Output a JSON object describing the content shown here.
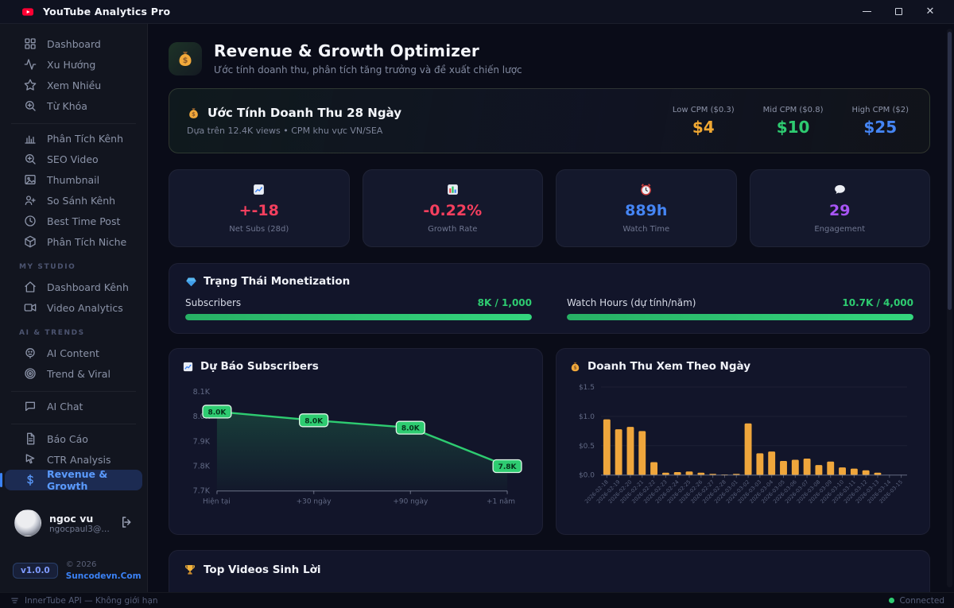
{
  "window": {
    "title": "YouTube Analytics Pro"
  },
  "titlebar": {
    "controls": [
      "minimize",
      "maximize",
      "close"
    ]
  },
  "sidebar": {
    "groups": [
      {
        "header": null,
        "items": [
          {
            "id": "dashboard",
            "icon": "grid",
            "label": "Dashboard",
            "active": false
          },
          {
            "id": "xu-huong",
            "icon": "activity",
            "label": "Xu Hướng",
            "active": false
          },
          {
            "id": "xem-nhieu",
            "icon": "star",
            "label": "Xem Nhiều",
            "active": false
          },
          {
            "id": "tu-khoa",
            "icon": "zoom",
            "label": "Từ Khóa",
            "active": false
          }
        ]
      },
      {
        "header": null,
        "items": [
          {
            "id": "phan-tich-kenh",
            "icon": "bars",
            "label": "Phân Tích Kênh",
            "active": false
          },
          {
            "id": "seo-video",
            "icon": "zoom",
            "label": "SEO Video",
            "active": false
          },
          {
            "id": "thumbnail",
            "icon": "image",
            "label": "Thumbnail",
            "active": false
          },
          {
            "id": "so-sanh-kenh",
            "icon": "user-plus",
            "label": "So Sánh Kênh",
            "active": false
          },
          {
            "id": "best-time-post",
            "icon": "clock",
            "label": "Best Time Post",
            "active": false
          },
          {
            "id": "phan-tich-niche",
            "icon": "cube",
            "label": "Phân Tích Niche",
            "active": false
          }
        ]
      },
      {
        "header": "MY STUDIO",
        "items": [
          {
            "id": "dashboard-kenh",
            "icon": "home",
            "label": "Dashboard Kênh",
            "active": false
          },
          {
            "id": "video-analytics",
            "icon": "video",
            "label": "Video Analytics",
            "active": false
          }
        ]
      },
      {
        "header": "AI & TRENDS",
        "items": [
          {
            "id": "ai-content",
            "icon": "robot",
            "label": "AI Content",
            "active": false
          },
          {
            "id": "trend-viral",
            "icon": "target",
            "label": "Trend & Viral",
            "active": false
          }
        ]
      },
      {
        "header": null,
        "items": [
          {
            "id": "ai-chat",
            "icon": "chat",
            "label": "AI Chat",
            "active": false
          }
        ]
      },
      {
        "header": null,
        "items": [
          {
            "id": "bao-cao",
            "icon": "doc",
            "label": "Báo Cáo",
            "active": false
          },
          {
            "id": "ctr-analysis",
            "icon": "cursor",
            "label": "CTR Analysis",
            "active": false
          },
          {
            "id": "revenue-growth",
            "icon": "dollar",
            "label": "Revenue & Growth",
            "active": true
          }
        ]
      }
    ],
    "user": {
      "name": "ngoc vu",
      "email": "ngocpaul3@gmail..."
    },
    "footer": {
      "version": "v1.0.0",
      "copyright": "© 2026",
      "site": "Suncodevn.Com"
    }
  },
  "statusbar": {
    "api_label": "InnerTube API — Không giới hạn",
    "connection_label": "Connected"
  },
  "header": {
    "title": "Revenue & Growth Optimizer",
    "subtitle": "Ước tính doanh thu, phân tích tăng trưởng và đề xuất chiến lược"
  },
  "revenue_panel": {
    "title": "Ước Tính Doanh Thu 28 Ngày",
    "subtitle": "Dựa trên 12.4K views • CPM khu vực VN/SEA",
    "tiers": [
      {
        "label": "Low CPM ($0.3)",
        "value": "$4",
        "color": "#f0a832"
      },
      {
        "label": "Mid CPM ($0.8)",
        "value": "$10",
        "color": "#2ecc71"
      },
      {
        "label": "High CPM ($2)",
        "value": "$25",
        "color": "#4585f4"
      }
    ]
  },
  "stat_cards": [
    {
      "icon": "chart-up",
      "value": "+-18",
      "label": "Net Subs (28d)",
      "color": "#f43f5e"
    },
    {
      "icon": "bar-emoji",
      "value": "-0.22%",
      "label": "Growth Rate",
      "color": "#f43f5e"
    },
    {
      "icon": "alarm",
      "value": "889h",
      "label": "Watch Time",
      "color": "#4585f4"
    },
    {
      "icon": "speech",
      "value": "29",
      "label": "Engagement",
      "color": "#a855f7"
    }
  ],
  "monetization": {
    "title": "Trạng Thái Monetization",
    "metrics": [
      {
        "label": "Subscribers",
        "value": "8K / 1,000",
        "pct": 100
      },
      {
        "label": "Watch Hours (dự tính/năm)",
        "value": "10.7K / 4,000",
        "pct": 100
      }
    ]
  },
  "top_videos": {
    "title": "Top Videos Sinh Lời"
  },
  "chart_data": [
    {
      "type": "line",
      "title": "Dự Báo Subscribers",
      "icon": "chart-up",
      "x": [
        "Hiện tại",
        "+30 ngày",
        "+90 ngày",
        "+1 năm"
      ],
      "values": [
        8020,
        7985,
        7955,
        7800
      ],
      "point_labels": [
        "8.0K",
        "8.0K",
        "8.0K",
        "7.8K"
      ],
      "ylim": [
        7700,
        8100
      ],
      "ytick_values": [
        8100,
        8000,
        7900,
        7800,
        7700
      ],
      "ytick_labels": [
        "8.1K",
        "8.0K",
        "7.9K",
        "7.8K",
        "7.7K"
      ],
      "line_color": "#2ecc71",
      "grid": false,
      "legend": "none"
    },
    {
      "type": "bar",
      "title": "Doanh Thu Xem Theo Ngày",
      "icon": "money-bag",
      "categories": [
        "2026-02-18",
        "2026-02-19",
        "2026-02-20",
        "2026-02-21",
        "2026-02-22",
        "2026-02-23",
        "2026-02-24",
        "2026-02-25",
        "2026-02-26",
        "2026-02-27",
        "2026-02-28",
        "2026-03-01",
        "2026-03-02",
        "2026-03-03",
        "2026-03-04",
        "2026-03-05",
        "2026-03-06",
        "2026-03-07",
        "2026-03-08",
        "2026-03-09",
        "2026-03-10",
        "2026-03-11",
        "2026-03-12",
        "2026-03-13",
        "2026-03-14",
        "2026-03-15"
      ],
      "values": [
        0.95,
        0.78,
        0.82,
        0.75,
        0.22,
        0.04,
        0.05,
        0.06,
        0.04,
        0.02,
        0.01,
        0.02,
        0.88,
        0.37,
        0.4,
        0.24,
        0.26,
        0.28,
        0.17,
        0.23,
        0.13,
        0.11,
        0.08,
        0.04,
        0,
        0
      ],
      "ylim": [
        0,
        1.5
      ],
      "ytick_values": [
        1.5,
        1.0,
        0.5,
        0.0
      ],
      "ytick_labels": [
        "$1.5",
        "$1.0",
        "$0.5",
        "$0.0"
      ],
      "bar_color": "#efa63c",
      "grid": true,
      "legend": "none"
    }
  ]
}
